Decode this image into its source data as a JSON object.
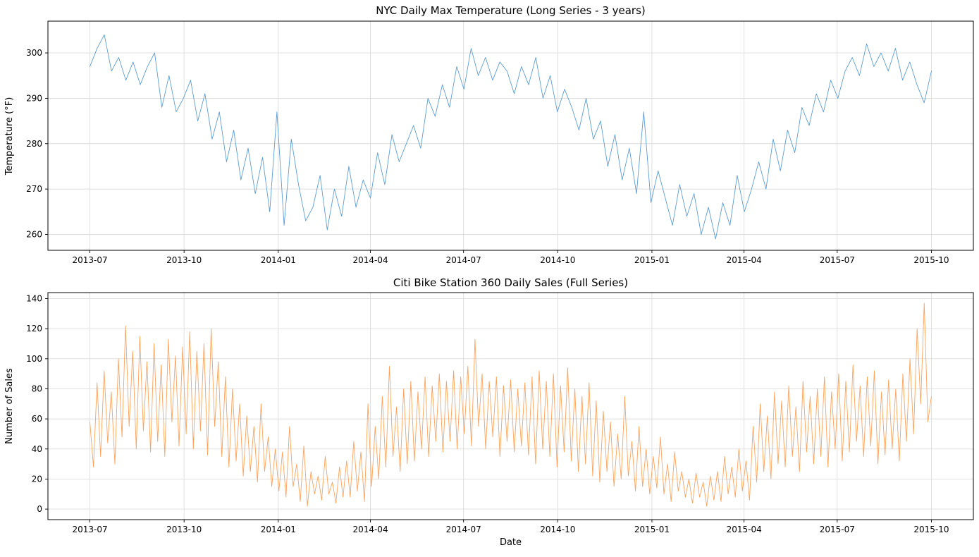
{
  "figure": {
    "background": "#ffffff",
    "grid_color": "#dcdcdc",
    "spine_color": "#000000"
  },
  "chart_data": [
    {
      "type": "line",
      "title": "NYC Daily Max Temperature (Long Series - 3 years)",
      "xlabel": "",
      "ylabel": "Temperature (°F)",
      "color": "#5b9dd5",
      "grid": true,
      "legend": "none",
      "x_start": "2013-07-01",
      "x_end": "2015-10-01",
      "total_days": 822,
      "x_tick_labels": [
        "2013-07",
        "2013-10",
        "2014-01",
        "2014-04",
        "2014-07",
        "2014-10",
        "2015-01",
        "2015-04",
        "2015-07",
        "2015-10"
      ],
      "x_tick_days": [
        0,
        92,
        184,
        274,
        365,
        457,
        549,
        639,
        730,
        822
      ],
      "xlim_days": [
        -41,
        863
      ],
      "ylim": [
        256.5,
        307
      ],
      "yticks": [
        260,
        270,
        280,
        290,
        300
      ],
      "values": [
        297,
        301,
        304,
        296,
        299,
        294,
        298,
        293,
        297,
        300,
        288,
        295,
        287,
        290,
        294,
        285,
        291,
        281,
        287,
        276,
        283,
        272,
        279,
        269,
        277,
        265,
        287,
        262,
        281,
        271,
        263,
        266,
        273,
        261,
        270,
        264,
        275,
        266,
        272,
        268,
        278,
        271,
        282,
        276,
        280,
        284,
        279,
        290,
        286,
        293,
        288,
        297,
        292,
        301,
        295,
        299,
        294,
        298,
        296,
        291,
        297,
        293,
        299,
        290,
        295,
        287,
        292,
        288,
        283,
        290,
        281,
        285,
        275,
        282,
        272,
        279,
        269,
        287,
        267,
        274,
        268,
        262,
        271,
        264,
        269,
        260,
        266,
        259,
        267,
        262,
        273,
        265,
        270,
        276,
        270,
        281,
        274,
        283,
        278,
        288,
        284,
        291,
        287,
        294,
        290,
        296,
        299,
        295,
        302,
        297,
        300,
        296,
        301,
        294,
        298,
        293,
        289,
        296
      ]
    },
    {
      "type": "line",
      "title": "Citi Bike Station 360 Daily Sales (Full Series)",
      "xlabel": "Date",
      "ylabel": "Number of Sales",
      "color": "#fba35c",
      "grid": true,
      "legend": "none",
      "x_start": "2013-07-01",
      "x_end": "2015-10-01",
      "total_days": 822,
      "x_tick_labels": [
        "2013-07",
        "2013-10",
        "2014-01",
        "2014-04",
        "2014-07",
        "2014-10",
        "2015-01",
        "2015-04",
        "2015-07",
        "2015-10"
      ],
      "x_tick_days": [
        0,
        92,
        184,
        274,
        365,
        457,
        549,
        639,
        730,
        822
      ],
      "xlim_days": [
        -41,
        863
      ],
      "ylim": [
        -7,
        144
      ],
      "yticks": [
        0,
        20,
        40,
        60,
        80,
        100,
        120,
        140
      ],
      "values": [
        58,
        28,
        84,
        35,
        92,
        44,
        78,
        30,
        100,
        48,
        122,
        55,
        105,
        40,
        115,
        52,
        98,
        38,
        110,
        45,
        96,
        35,
        113,
        58,
        102,
        42,
        108,
        50,
        118,
        40,
        105,
        52,
        110,
        36,
        120,
        55,
        98,
        35,
        88,
        28,
        80,
        32,
        70,
        22,
        62,
        25,
        55,
        18,
        70,
        25,
        48,
        15,
        40,
        12,
        38,
        8,
        55,
        15,
        30,
        5,
        42,
        2,
        25,
        10,
        22,
        6,
        35,
        10,
        18,
        4,
        28,
        8,
        32,
        8,
        45,
        12,
        38,
        5,
        70,
        15,
        55,
        20,
        75,
        28,
        95,
        35,
        68,
        25,
        80,
        30,
        85,
        32,
        78,
        40,
        88,
        35,
        82,
        45,
        90,
        38,
        85,
        45,
        92,
        40,
        88,
        50,
        95,
        42,
        113,
        55,
        90,
        40,
        85,
        48,
        88,
        35,
        82,
        45,
        86,
        38,
        80,
        42,
        84,
        36,
        88,
        30,
        92,
        40,
        85,
        35,
        90,
        28,
        82,
        38,
        94,
        32,
        80,
        25,
        75,
        30,
        84,
        22,
        72,
        18,
        65,
        25,
        58,
        15,
        50,
        20,
        75,
        22,
        45,
        12,
        55,
        15,
        40,
        10,
        35,
        14,
        48,
        10,
        30,
        5,
        38,
        12,
        25,
        8,
        20,
        4,
        24,
        8,
        18,
        2,
        22,
        6,
        25,
        5,
        35,
        10,
        28,
        8,
        40,
        12,
        32,
        6,
        55,
        18,
        70,
        25,
        62,
        20,
        78,
        30,
        72,
        28,
        82,
        35,
        68,
        25,
        85,
        38,
        75,
        30,
        80,
        35,
        88,
        28,
        78,
        40,
        90,
        32,
        85,
        38,
        96,
        45,
        82,
        35,
        88,
        42,
        92,
        30,
        78,
        36,
        86,
        40,
        80,
        32,
        90,
        45,
        100,
        50,
        120,
        70,
        137,
        58,
        75
      ]
    }
  ]
}
